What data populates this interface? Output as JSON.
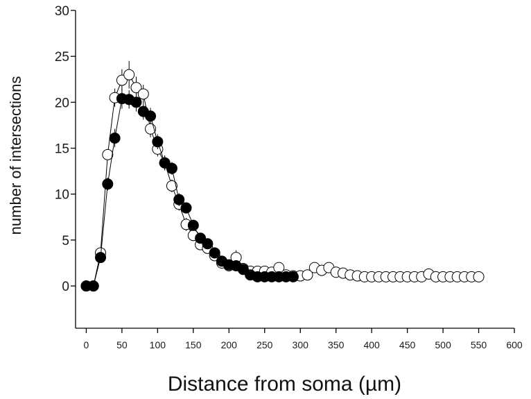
{
  "chart_data": {
    "type": "scatter",
    "title": "",
    "xlabel": "Distance from soma (µm)",
    "ylabel": "number of intersections",
    "xlim": [
      -15,
      600
    ],
    "ylim": [
      -4.6,
      30
    ],
    "x_ticks": [
      0,
      50,
      100,
      150,
      200,
      250,
      300,
      350,
      400,
      450,
      500,
      550,
      600
    ],
    "y_ticks": [
      0,
      5,
      10,
      15,
      20,
      25,
      30
    ],
    "grid": false,
    "legend": "none",
    "series": [
      {
        "marker": "open-circle",
        "color": "#ffffff",
        "x": [
          0,
          10,
          20,
          30,
          40,
          50,
          60,
          70,
          80,
          90,
          100,
          110,
          120,
          130,
          140,
          150,
          160,
          170,
          180,
          190,
          200,
          210,
          220,
          230,
          240,
          250,
          260,
          270,
          280,
          290,
          300,
          310,
          320,
          330,
          340,
          350,
          360,
          370,
          380,
          390,
          400,
          410,
          420,
          430,
          440,
          450,
          460,
          470,
          480,
          490,
          500,
          510,
          520,
          530,
          540,
          550
        ],
        "y": [
          0,
          0,
          3.6,
          14.3,
          20.5,
          22.4,
          23.0,
          21.6,
          20.9,
          17.1,
          14.9,
          13.4,
          10.9,
          8.9,
          6.7,
          5.5,
          4.5,
          4.1,
          3.3,
          2.5,
          2.2,
          3.1,
          1.9,
          1.6,
          1.6,
          1.6,
          1.5,
          2.0,
          1.2,
          1.1,
          1.1,
          1.2,
          2.0,
          1.7,
          2.0,
          1.5,
          1.4,
          1.2,
          1.1,
          1.0,
          1.0,
          1.0,
          1.0,
          1.0,
          1.0,
          1.0,
          1.0,
          1.0,
          1.3,
          1.0,
          1.0,
          1.0,
          1.0,
          1.0,
          1.0,
          1.0
        ],
        "err": [
          0,
          0,
          0.4,
          0.6,
          1.0,
          1.2,
          1.5,
          1.2,
          1.0,
          0.9,
          0.8,
          0.8,
          0.7,
          0.7,
          0.7,
          0.6,
          0.5,
          0.5,
          0.4,
          0.4,
          0.4,
          0.8,
          0.4,
          0.3,
          0.3,
          0.3,
          0.3,
          0.5,
          0.3,
          0.2,
          0.2,
          0.2,
          0.5,
          0.5,
          0.5,
          0.3,
          0.2,
          0.2,
          0.2,
          0.1,
          0.1,
          0.1,
          0.1,
          0.1,
          0.1,
          0.1,
          0.1,
          0.1,
          0.2,
          0.1,
          0.1,
          0.1,
          0.1,
          0.1,
          0.1,
          0.1
        ]
      },
      {
        "marker": "filled-circle",
        "color": "#000000",
        "x": [
          0,
          10,
          20,
          30,
          40,
          50,
          60,
          70,
          80,
          90,
          100,
          110,
          120,
          130,
          140,
          150,
          160,
          170,
          180,
          190,
          200,
          210,
          220,
          230,
          240,
          250,
          260,
          270,
          280,
          290
        ],
        "y": [
          0,
          0,
          3.1,
          11.1,
          16.1,
          20.4,
          20.3,
          20.0,
          19.0,
          18.5,
          15.7,
          13.4,
          12.8,
          9.4,
          8.5,
          6.6,
          5.2,
          4.6,
          3.6,
          2.7,
          2.3,
          2.2,
          1.8,
          1.2,
          1.0,
          1.0,
          1.0,
          1.0,
          1.0,
          1.0
        ],
        "err": [
          0,
          0,
          0.4,
          0.7,
          1.0,
          1.1,
          1.0,
          1.0,
          0.9,
          0.9,
          0.8,
          0.8,
          0.7,
          0.7,
          0.6,
          0.6,
          0.5,
          0.5,
          0.4,
          0.4,
          0.3,
          0.3,
          0.3,
          0.2,
          0.2,
          0.2,
          0.2,
          0.2,
          0.2,
          0.2
        ]
      }
    ]
  }
}
